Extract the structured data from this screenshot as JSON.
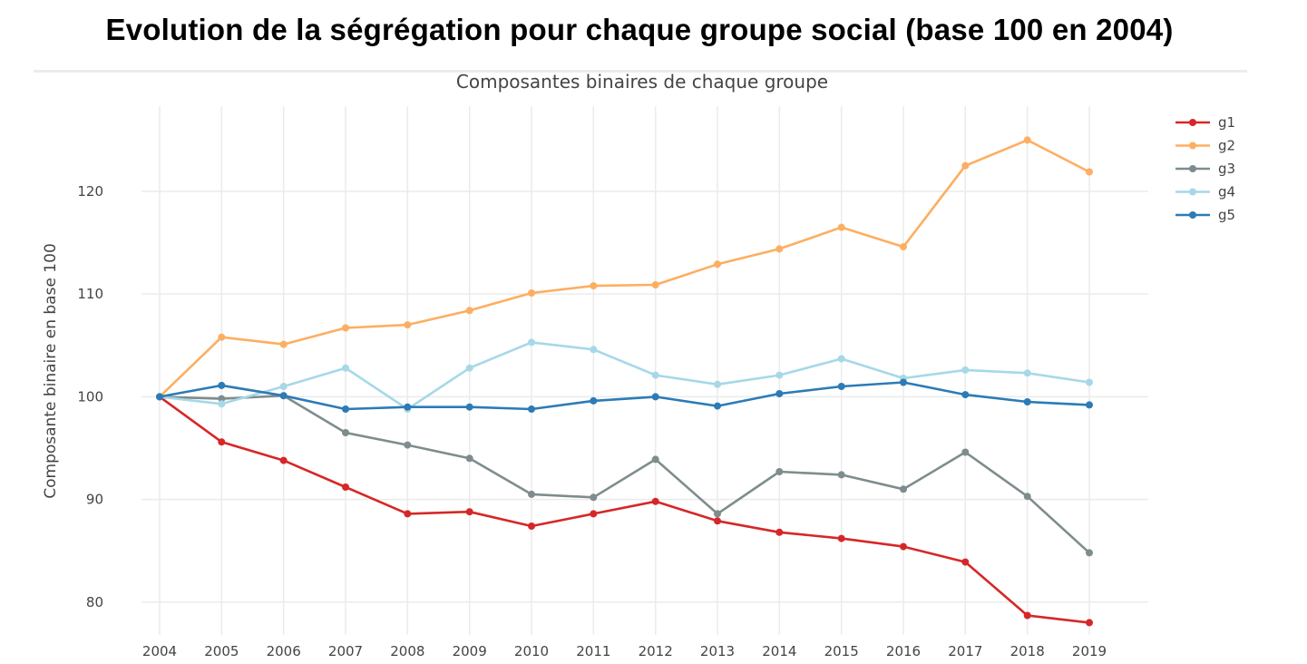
{
  "page": {
    "title": "Evolution de la ségrégation pour chaque groupe social (base 100 en 2004)"
  },
  "chart_data": {
    "type": "line",
    "title": "Composantes binaires de chaque groupe",
    "xlabel": "",
    "ylabel": "Composante binaire en base 100",
    "x": [
      2004,
      2005,
      2006,
      2007,
      2008,
      2009,
      2010,
      2011,
      2012,
      2013,
      2014,
      2015,
      2016,
      2017,
      2018,
      2019
    ],
    "xlim": [
      2004,
      2019
    ],
    "ylim": [
      76.8,
      128.3
    ],
    "yticks": [
      80,
      90,
      100,
      110,
      120
    ],
    "grid": true,
    "legend_position": "top-right",
    "series": [
      {
        "name": "g1",
        "color": "#d62728",
        "values": [
          100,
          95.6,
          93.8,
          91.2,
          88.6,
          88.8,
          87.4,
          88.6,
          89.8,
          87.9,
          86.8,
          86.2,
          85.4,
          83.9,
          78.7,
          78.0
        ]
      },
      {
        "name": "g2",
        "color": "#fdae61",
        "values": [
          100,
          105.8,
          105.1,
          106.7,
          107.0,
          108.4,
          110.1,
          110.8,
          110.9,
          112.9,
          114.4,
          116.5,
          114.6,
          122.5,
          125.0,
          121.9
        ]
      },
      {
        "name": "g3",
        "color": "#7f8c8d",
        "values": [
          100,
          99.8,
          100.1,
          96.5,
          95.3,
          94.0,
          90.5,
          90.2,
          93.9,
          88.6,
          92.7,
          92.4,
          91.0,
          94.6,
          90.3,
          84.8
        ]
      },
      {
        "name": "g4",
        "color": "#a6d8e8",
        "values": [
          100,
          99.3,
          101.0,
          102.8,
          98.8,
          102.8,
          105.3,
          104.6,
          102.1,
          101.2,
          102.1,
          103.7,
          101.8,
          102.6,
          102.3,
          101.4
        ]
      },
      {
        "name": "g5",
        "color": "#2c7bb6",
        "values": [
          100,
          101.1,
          100.1,
          98.8,
          99.0,
          99.0,
          98.8,
          99.6,
          100.0,
          99.1,
          100.3,
          101.0,
          101.4,
          100.2,
          99.5,
          99.2
        ]
      }
    ]
  }
}
